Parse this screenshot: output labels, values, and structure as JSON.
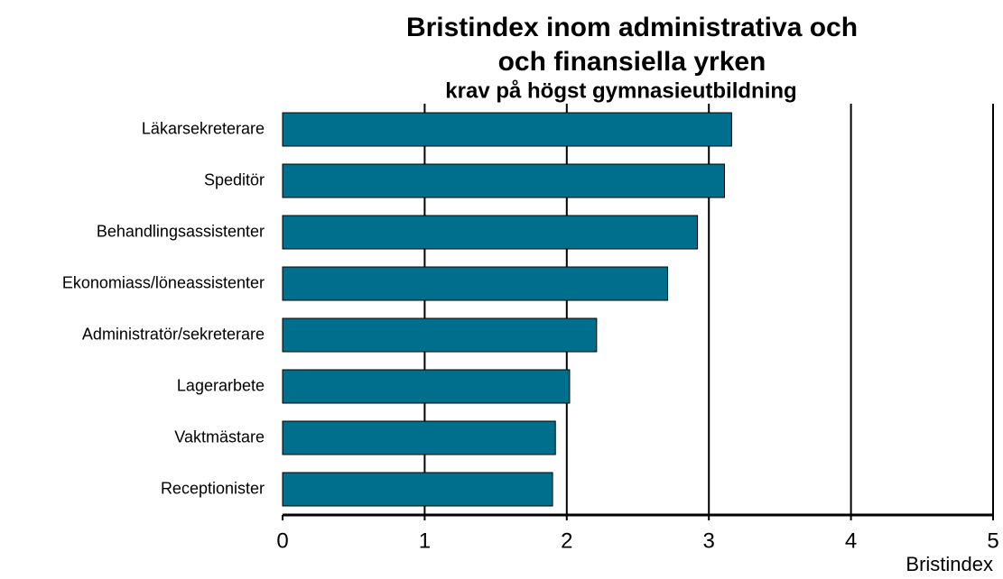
{
  "chart_data": {
    "type": "barh",
    "title": [
      "Bristindex inom administrativa och",
      "och finansiella yrken"
    ],
    "subtitle": "krav på högst gymnasieutbildning",
    "xlabel": "Bristindex",
    "categories": [
      "Läkarsekreterare",
      "Speditör",
      "Behandlingsassistenter",
      "Ekonomiass/löneassistenter",
      "Administratör/sekreterare",
      "Lagerarbete",
      "Vaktmästare",
      "Receptionister"
    ],
    "values": [
      3.16,
      3.11,
      2.92,
      2.71,
      2.21,
      2.02,
      1.92,
      1.9
    ],
    "color": "#006f8e",
    "xlim": [
      0,
      5
    ],
    "xticks": [
      0,
      1,
      2,
      3,
      4,
      5
    ],
    "grid": true
  }
}
